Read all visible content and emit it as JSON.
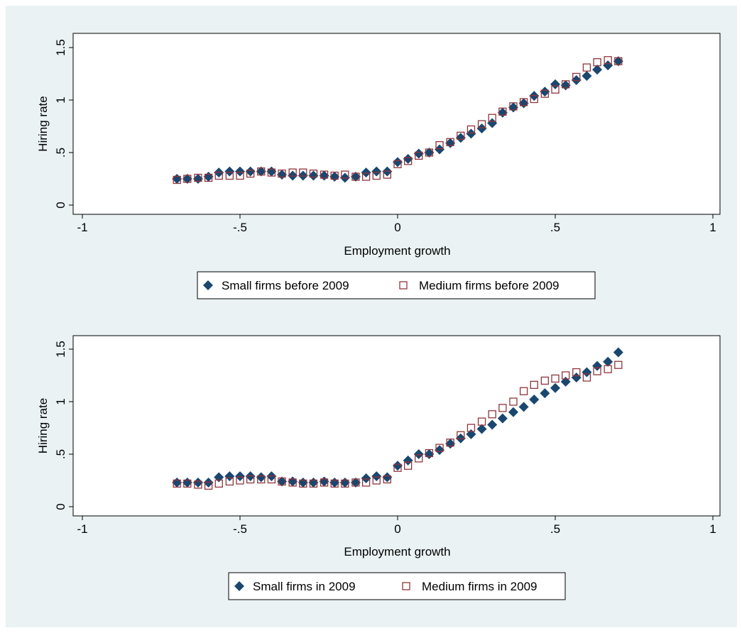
{
  "colors": {
    "background": "#eaf2f3",
    "plot_area": "#ffffff",
    "small_firms": "#1a476f",
    "medium_firms": "#90353b"
  },
  "chart_data": [
    {
      "type": "scatter",
      "xlabel": "Employment growth",
      "ylabel": "Hiring rate",
      "xlim": [
        -1,
        1
      ],
      "ylim": [
        0,
        1.5
      ],
      "x_ticks": [
        -1,
        -0.5,
        0,
        0.5,
        1
      ],
      "x_tick_labels": [
        "-1",
        "-.5",
        "0",
        ".5",
        "1"
      ],
      "y_ticks": [
        0,
        0.5,
        1,
        1.5
      ],
      "y_tick_labels": [
        "0",
        ".5",
        "1",
        "1.5"
      ],
      "grid": false,
      "legend_position": "bottom",
      "x": [
        -0.7,
        -0.667,
        -0.633,
        -0.6,
        -0.567,
        -0.533,
        -0.5,
        -0.467,
        -0.433,
        -0.4,
        -0.367,
        -0.333,
        -0.3,
        -0.267,
        -0.233,
        -0.2,
        -0.167,
        -0.133,
        -0.1,
        -0.067,
        -0.033,
        0.0,
        0.033,
        0.067,
        0.1,
        0.133,
        0.167,
        0.2,
        0.233,
        0.267,
        0.3,
        0.333,
        0.367,
        0.4,
        0.433,
        0.467,
        0.5,
        0.533,
        0.567,
        0.6,
        0.633,
        0.667,
        0.7
      ],
      "series": [
        {
          "name": "Small firms before 2009",
          "marker": "diamond",
          "values": [
            0.25,
            0.25,
            0.25,
            0.27,
            0.31,
            0.32,
            0.32,
            0.32,
            0.32,
            0.32,
            0.29,
            0.28,
            0.28,
            0.28,
            0.28,
            0.27,
            0.26,
            0.27,
            0.31,
            0.32,
            0.32,
            0.41,
            0.44,
            0.49,
            0.5,
            0.53,
            0.59,
            0.64,
            0.68,
            0.73,
            0.78,
            0.88,
            0.93,
            0.97,
            1.04,
            1.08,
            1.15,
            1.14,
            1.19,
            1.23,
            1.29,
            1.33,
            1.37
          ]
        },
        {
          "name": "Medium firms before 2009",
          "marker": "hollow-square",
          "values": [
            0.24,
            0.25,
            0.26,
            0.26,
            0.28,
            0.28,
            0.28,
            0.3,
            0.32,
            0.31,
            0.3,
            0.31,
            0.31,
            0.3,
            0.29,
            0.28,
            0.29,
            0.27,
            0.27,
            0.28,
            0.29,
            0.39,
            0.42,
            0.47,
            0.5,
            0.57,
            0.6,
            0.66,
            0.72,
            0.77,
            0.83,
            0.89,
            0.94,
            0.98,
            1.01,
            1.06,
            1.1,
            1.15,
            1.22,
            1.31,
            1.36,
            1.38,
            1.37
          ]
        }
      ]
    },
    {
      "type": "scatter",
      "xlabel": "Employment growth",
      "ylabel": "Hiring rate",
      "xlim": [
        -1,
        1
      ],
      "ylim": [
        0,
        1.5
      ],
      "x_ticks": [
        -1,
        -0.5,
        0,
        0.5,
        1
      ],
      "x_tick_labels": [
        "-1",
        "-.5",
        "0",
        ".5",
        "1"
      ],
      "y_ticks": [
        0,
        0.5,
        1,
        1.5
      ],
      "y_tick_labels": [
        "0",
        ".5",
        "1",
        "1.5"
      ],
      "grid": false,
      "legend_position": "bottom",
      "x": [
        -0.7,
        -0.667,
        -0.633,
        -0.6,
        -0.567,
        -0.533,
        -0.5,
        -0.467,
        -0.433,
        -0.4,
        -0.367,
        -0.333,
        -0.3,
        -0.267,
        -0.233,
        -0.2,
        -0.167,
        -0.133,
        -0.1,
        -0.067,
        -0.033,
        0.0,
        0.033,
        0.067,
        0.1,
        0.133,
        0.167,
        0.2,
        0.233,
        0.267,
        0.3,
        0.333,
        0.367,
        0.4,
        0.433,
        0.467,
        0.5,
        0.533,
        0.567,
        0.6,
        0.633,
        0.667,
        0.7
      ],
      "series": [
        {
          "name": "Small firms in 2009",
          "marker": "diamond",
          "values": [
            0.23,
            0.23,
            0.23,
            0.23,
            0.28,
            0.29,
            0.29,
            0.29,
            0.28,
            0.29,
            0.24,
            0.24,
            0.23,
            0.23,
            0.24,
            0.23,
            0.23,
            0.23,
            0.27,
            0.29,
            0.28,
            0.39,
            0.44,
            0.5,
            0.5,
            0.54,
            0.6,
            0.65,
            0.69,
            0.74,
            0.78,
            0.84,
            0.9,
            0.95,
            1.02,
            1.08,
            1.13,
            1.19,
            1.23,
            1.28,
            1.34,
            1.38,
            1.47
          ]
        },
        {
          "name": "Medium firms in 2009",
          "marker": "hollow-square",
          "values": [
            0.22,
            0.22,
            0.21,
            0.2,
            0.22,
            0.24,
            0.25,
            0.26,
            0.26,
            0.26,
            0.24,
            0.23,
            0.22,
            0.22,
            0.23,
            0.22,
            0.22,
            0.23,
            0.23,
            0.25,
            0.26,
            0.37,
            0.39,
            0.46,
            0.51,
            0.56,
            0.61,
            0.68,
            0.75,
            0.81,
            0.88,
            0.94,
            1.0,
            1.1,
            1.16,
            1.2,
            1.22,
            1.25,
            1.28,
            1.23,
            1.29,
            1.31,
            1.35
          ]
        }
      ]
    }
  ]
}
